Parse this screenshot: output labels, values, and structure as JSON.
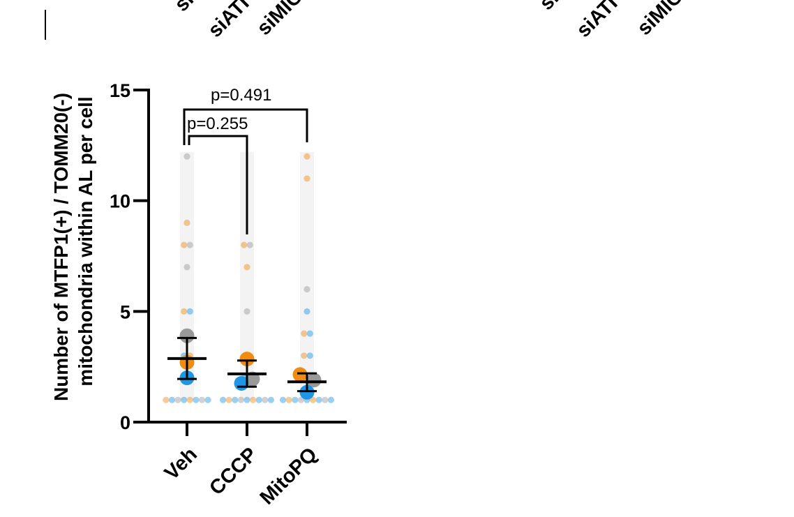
{
  "chart_data": {
    "type": "scatter",
    "ylabel_lines": [
      "Number of MTFP1(+) / TOMM20(-)",
      "mitochondria within AL per cell"
    ],
    "ylim": [
      0,
      15
    ],
    "yticks": [
      "0",
      "5",
      "10",
      "15"
    ],
    "categories": [
      "Veh",
      "CCCP",
      "MitoPQ"
    ],
    "top_partial_labels": [
      "si",
      "siATI",
      "siMIG",
      "si",
      "siATI",
      "siMIG"
    ],
    "colors": {
      "orange": "#f08c14",
      "blue": "#1e96e6",
      "grey": "#999999"
    },
    "raw_points": [
      {
        "category": "Veh",
        "color": "grey",
        "y": 12
      },
      {
        "category": "Veh",
        "color": "orange",
        "y": 9
      },
      {
        "category": "Veh",
        "color": "orange",
        "y": 8
      },
      {
        "category": "Veh",
        "color": "grey",
        "y": 8
      },
      {
        "category": "Veh",
        "color": "grey",
        "y": 7
      },
      {
        "category": "Veh",
        "color": "orange",
        "y": 5
      },
      {
        "category": "Veh",
        "color": "blue",
        "y": 5
      },
      {
        "category": "Veh",
        "color": "grey",
        "y": 4
      },
      {
        "category": "Veh",
        "color": "orange",
        "y": 4
      },
      {
        "category": "Veh",
        "color": "blue",
        "y": 3
      },
      {
        "category": "Veh",
        "color": "orange",
        "y": 3
      },
      {
        "category": "Veh",
        "color": "grey",
        "y": 2
      },
      {
        "category": "Veh",
        "color": "blue",
        "y": 2
      },
      {
        "category": "Veh",
        "color": "orange",
        "y": 1
      },
      {
        "category": "Veh",
        "color": "blue",
        "y": 1
      },
      {
        "category": "Veh",
        "color": "grey",
        "y": 1
      },
      {
        "category": "Veh",
        "color": "blue",
        "y": 1
      },
      {
        "category": "Veh",
        "color": "orange",
        "y": 1
      },
      {
        "category": "Veh",
        "color": "blue",
        "y": 1
      },
      {
        "category": "Veh",
        "color": "grey",
        "y": 1
      },
      {
        "category": "Veh",
        "color": "blue",
        "y": 1
      },
      {
        "category": "CCCP",
        "color": "orange",
        "y": 8
      },
      {
        "category": "CCCP",
        "color": "grey",
        "y": 8
      },
      {
        "category": "CCCP",
        "color": "orange",
        "y": 7
      },
      {
        "category": "CCCP",
        "color": "grey",
        "y": 5
      },
      {
        "category": "CCCP",
        "color": "orange",
        "y": 3
      },
      {
        "category": "CCCP",
        "color": "blue",
        "y": 2
      },
      {
        "category": "CCCP",
        "color": "grey",
        "y": 2
      },
      {
        "category": "CCCP",
        "color": "blue",
        "y": 1
      },
      {
        "category": "CCCP",
        "color": "orange",
        "y": 1
      },
      {
        "category": "CCCP",
        "color": "blue",
        "y": 1
      },
      {
        "category": "CCCP",
        "color": "grey",
        "y": 1
      },
      {
        "category": "CCCP",
        "color": "blue",
        "y": 1
      },
      {
        "category": "CCCP",
        "color": "orange",
        "y": 1
      },
      {
        "category": "CCCP",
        "color": "blue",
        "y": 1
      },
      {
        "category": "CCCP",
        "color": "grey",
        "y": 1
      },
      {
        "category": "CCCP",
        "color": "blue",
        "y": 1
      },
      {
        "category": "MitoPQ",
        "color": "orange",
        "y": 12
      },
      {
        "category": "MitoPQ",
        "color": "orange",
        "y": 11
      },
      {
        "category": "MitoPQ",
        "color": "grey",
        "y": 6
      },
      {
        "category": "MitoPQ",
        "color": "blue",
        "y": 5
      },
      {
        "category": "MitoPQ",
        "color": "orange",
        "y": 4
      },
      {
        "category": "MitoPQ",
        "color": "blue",
        "y": 4
      },
      {
        "category": "MitoPQ",
        "color": "orange",
        "y": 3
      },
      {
        "category": "MitoPQ",
        "color": "blue",
        "y": 3
      },
      {
        "category": "MitoPQ",
        "color": "grey",
        "y": 2
      },
      {
        "category": "MitoPQ",
        "color": "orange",
        "y": 2
      },
      {
        "category": "MitoPQ",
        "color": "blue",
        "y": 2
      },
      {
        "category": "MitoPQ",
        "color": "blue",
        "y": 1
      },
      {
        "category": "MitoPQ",
        "color": "orange",
        "y": 1
      },
      {
        "category": "MitoPQ",
        "color": "blue",
        "y": 1
      },
      {
        "category": "MitoPQ",
        "color": "grey",
        "y": 1
      },
      {
        "category": "MitoPQ",
        "color": "blue",
        "y": 1
      },
      {
        "category": "MitoPQ",
        "color": "orange",
        "y": 1
      },
      {
        "category": "MitoPQ",
        "color": "blue",
        "y": 1
      },
      {
        "category": "MitoPQ",
        "color": "grey",
        "y": 1
      },
      {
        "category": "MitoPQ",
        "color": "blue",
        "y": 1
      }
    ],
    "replicate_means": [
      {
        "category": "Veh",
        "color": "grey",
        "y": 3.9
      },
      {
        "category": "Veh",
        "color": "orange",
        "y": 2.7
      },
      {
        "category": "Veh",
        "color": "blue",
        "y": 2.0
      },
      {
        "category": "CCCP",
        "color": "orange",
        "y": 2.85
      },
      {
        "category": "CCCP",
        "color": "grey",
        "y": 1.95
      },
      {
        "category": "CCCP",
        "color": "blue",
        "y": 1.75
      },
      {
        "category": "MitoPQ",
        "color": "orange",
        "y": 2.15
      },
      {
        "category": "MitoPQ",
        "color": "grey",
        "y": 1.9
      },
      {
        "category": "MitoPQ",
        "color": "blue",
        "y": 1.35
      }
    ],
    "summary": [
      {
        "category": "Veh",
        "mean": 2.87,
        "low": 1.95,
        "high": 3.8
      },
      {
        "category": "CCCP",
        "mean": 2.18,
        "low": 1.6,
        "high": 2.78
      },
      {
        "category": "MitoPQ",
        "mean": 1.82,
        "low": 1.4,
        "high": 2.2
      }
    ],
    "comparisons": [
      {
        "from": "Veh",
        "to": "CCCP",
        "label": "p=0.255"
      },
      {
        "from": "Veh",
        "to": "MitoPQ",
        "label": "p=0.491"
      }
    ]
  }
}
